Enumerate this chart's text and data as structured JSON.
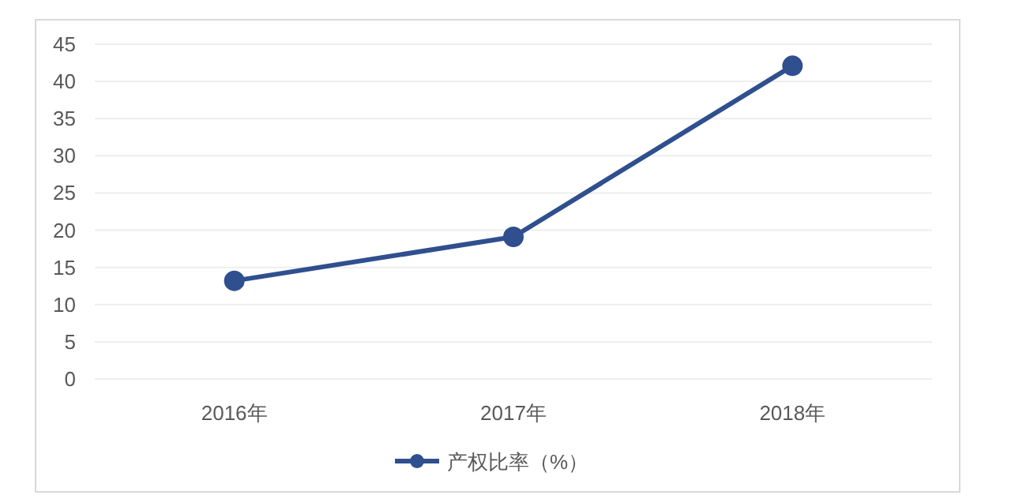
{
  "chart_data": {
    "type": "line",
    "categories": [
      "2016年",
      "2017年",
      "2018年"
    ],
    "series": [
      {
        "name": "产权比率（%）",
        "color": "#2f4f8f",
        "values": [
          13.2,
          19.1,
          42.1
        ]
      }
    ],
    "ylim": [
      0,
      45
    ],
    "yticks": [
      0,
      5,
      10,
      15,
      20,
      25,
      30,
      35,
      40,
      45
    ],
    "grid": "y",
    "legend": "bottom",
    "marker": "circle",
    "line_style": "solid"
  }
}
